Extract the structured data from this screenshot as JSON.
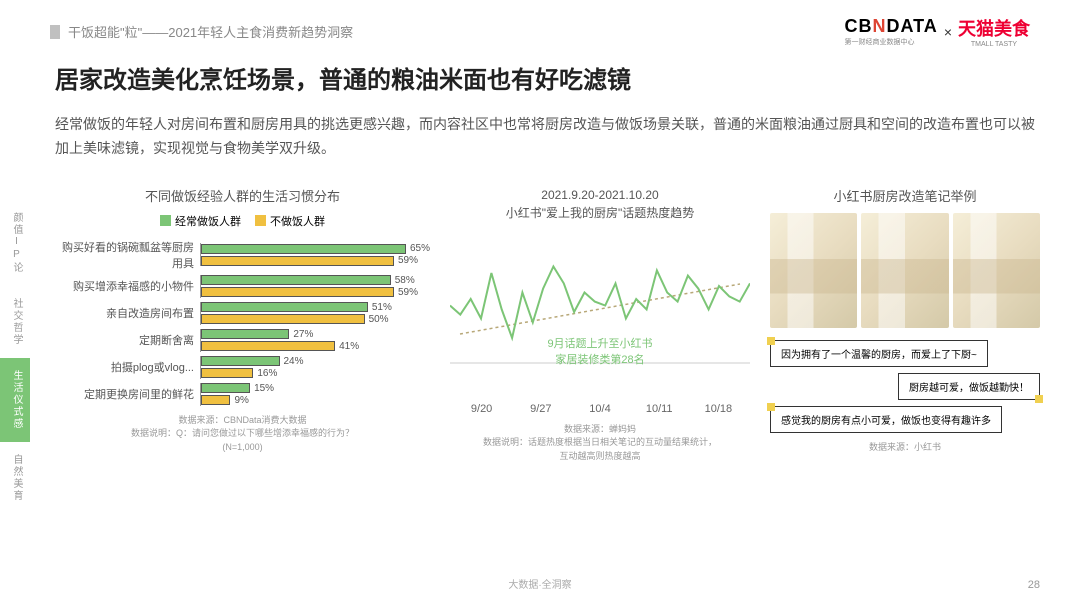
{
  "header": {
    "breadcrumb": "干饭超能\"粒\"——2021年轻人主食消费新趋势洞察",
    "logo_cbn_pre": "CB",
    "logo_cbn_n": "N",
    "logo_cbn_post": "DATA",
    "logo_cbn_sub": "第一财经商业数据中心",
    "logo_x": "×",
    "logo_tmall": "天猫美食",
    "logo_tmall_sub": "TMALL TASTY"
  },
  "sidebar": {
    "tabs": [
      "颜值IP论",
      "社交哲学",
      "生活仪式感",
      "自然美育"
    ],
    "active_index": 2
  },
  "main": {
    "title": "居家改造美化烹饪场景，普通的粮油米面也有好吃滤镜",
    "subtitle": "经常做饭的年轻人对房间布置和厨房用具的挑选更感兴趣，而内容社区中也常将厨房改造与做饭场景关联，普通的米面粮油通过厨具和空间的改造布置也可以被加上美味滤镜，实现视觉与食物美学双升级。"
  },
  "barChart": {
    "title": "不同做饭经验人群的生活习惯分布",
    "legend": [
      {
        "label": "经常做饭人群",
        "color": "#7cc576"
      },
      {
        "label": "不做饭人群",
        "color": "#f0c040"
      }
    ],
    "max": 70,
    "rows": [
      {
        "label": "购买好看的锅碗瓢盆等厨房用具",
        "a": 65,
        "b": 59
      },
      {
        "label": "购买增添幸福感的小物件",
        "a": 58,
        "b": 59
      },
      {
        "label": "亲自改造房间布置",
        "a": 51,
        "b": 50
      },
      {
        "label": "定期断舍离",
        "a": 27,
        "b": 41
      },
      {
        "label": "拍摄plog或vlog...",
        "a": 24,
        "b": 16
      },
      {
        "label": "定期更换房间里的鲜花",
        "a": 15,
        "b": 9
      }
    ],
    "notes": "数据来源：CBNData消费大数据\n数据说明：Q：请问您做过以下哪些增添幸福感的行为？\n(N=1,000)"
  },
  "lineChart": {
    "date_range": "2021.9.20-2021.10.20",
    "title": "小红书\"爱上我的厨房\"话题热度趋势",
    "caption": "9月话题上升至小红书\n家居装修类第28名",
    "color": "#7cc576",
    "trend_color": "#b8a878",
    "points": [
      45,
      38,
      50,
      35,
      70,
      42,
      20,
      55,
      32,
      58,
      75,
      62,
      40,
      55,
      48,
      45,
      62,
      35,
      50,
      42,
      72,
      55,
      48,
      68,
      58,
      42,
      60,
      52,
      48,
      62
    ],
    "x_ticks": [
      "9/20",
      "9/27",
      "10/4",
      "10/11",
      "10/18"
    ],
    "notes": "数据来源：蝉妈妈\n数据说明：话题热度根据当日相关笔记的互动量结果统计，\n互动越高则热度越高"
  },
  "examples": {
    "title": "小红书厨房改造笔记举例",
    "bubbles": [
      "因为拥有了一个温馨的厨房，而爱上了下厨~",
      "厨房越可爱，做饭越勤快！",
      "感觉我的厨房有点小可爱，做饭也变得有趣许多"
    ],
    "notes": "数据来源：小红书"
  },
  "footer": {
    "center": "大数据·全洞察",
    "page": "28"
  }
}
